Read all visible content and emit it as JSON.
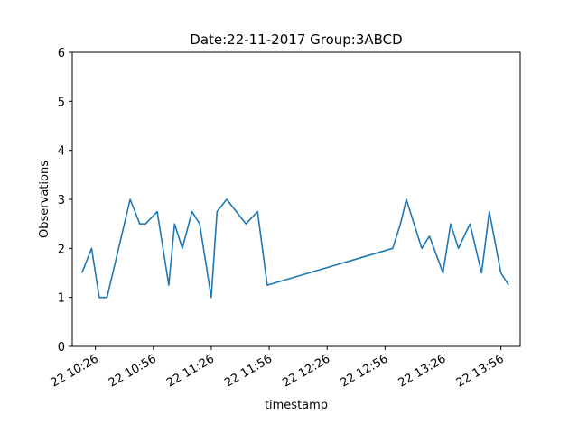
{
  "chart_data": {
    "type": "line",
    "title": "Date:22-11-2017  Group:3ABCD",
    "xlabel": "timestamp",
    "ylabel": "Observations",
    "ylim": [
      0,
      6
    ],
    "yticks": [
      "0",
      "1",
      "2",
      "3",
      "4",
      "5",
      "6"
    ],
    "xlim": [
      "2017-11-22 10:14",
      "2017-11-22 14:06"
    ],
    "xticks": [
      {
        "label": "22 10:26",
        "value": "2017-11-22 10:26"
      },
      {
        "label": "22 10:56",
        "value": "2017-11-22 10:56"
      },
      {
        "label": "22 11:26",
        "value": "2017-11-22 11:26"
      },
      {
        "label": "22 11:56",
        "value": "2017-11-22 11:56"
      },
      {
        "label": "22 12:26",
        "value": "2017-11-22 12:26"
      },
      {
        "label": "22 12:56",
        "value": "2017-11-22 12:56"
      },
      {
        "label": "22 13:26",
        "value": "2017-11-22 13:26"
      },
      {
        "label": "22 13:56",
        "value": "2017-11-22 13:56"
      }
    ],
    "grid": false,
    "series": [
      {
        "color": "#1f77b4",
        "x": [
          "2017-11-22 10:19",
          "2017-11-22 10:24",
          "2017-11-22 10:28",
          "2017-11-22 10:32",
          "2017-11-22 10:44",
          "2017-11-22 10:49",
          "2017-11-22 10:52",
          "2017-11-22 10:58",
          "2017-11-22 11:04",
          "2017-11-22 11:07",
          "2017-11-22 11:11",
          "2017-11-22 11:16",
          "2017-11-22 11:20",
          "2017-11-22 11:26",
          "2017-11-22 11:29",
          "2017-11-22 11:34",
          "2017-11-22 11:44",
          "2017-11-22 11:50",
          "2017-11-22 11:55",
          "2017-11-22 13:00",
          "2017-11-22 13:04",
          "2017-11-22 13:07",
          "2017-11-22 13:15",
          "2017-11-22 13:19",
          "2017-11-22 13:26",
          "2017-11-22 13:30",
          "2017-11-22 13:34",
          "2017-11-22 13:40",
          "2017-11-22 13:46",
          "2017-11-22 13:50",
          "2017-11-22 13:56",
          "2017-11-22 14:00"
        ],
        "values": [
          1.5,
          2.0,
          1.0,
          1.0,
          3.0,
          2.5,
          2.5,
          2.75,
          1.25,
          2.5,
          2.0,
          2.75,
          2.5,
          1.0,
          2.75,
          3.0,
          2.5,
          2.75,
          1.25,
          2.0,
          2.5,
          3.0,
          2.0,
          2.25,
          1.5,
          2.5,
          2.0,
          2.5,
          1.5,
          2.75,
          1.5,
          1.25
        ]
      }
    ]
  }
}
